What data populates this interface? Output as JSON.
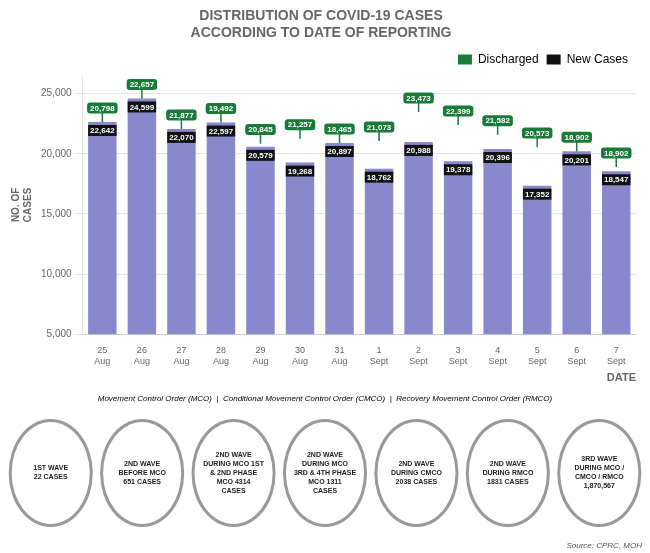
{
  "chart_data": {
    "type": "bar",
    "title": "DISTRIBUTION OF COVID-19 CASES\nACCORDING TO DATE OF REPORTING",
    "xlabel": "DATE",
    "ylabel": "NO. OF\nCASES",
    "categories": [
      "25\nAug",
      "26\nAug",
      "27\nAug",
      "28\nAug",
      "29\nAug",
      "30\nAug",
      "31\nAug",
      "1\nSept",
      "2\nSept",
      "3\nSept",
      "4\nSept",
      "5\nSept",
      "6\nSept",
      "7\nSept"
    ],
    "color": "#8888cc",
    "series": [
      {
        "name": "Discharged",
        "type": "label",
        "color": "#1a7a3a",
        "values": [
          20798,
          22657,
          21877,
          19492,
          20845,
          21257,
          18465,
          21073,
          23473,
          22399,
          21582,
          20573,
          18902,
          18902
        ],
        "value_labels": [
          "20,798",
          "22,657",
          "21,877",
          "19,492",
          "20,845",
          "21,257",
          "18,465",
          "21,073",
          "23,473",
          "22,399",
          "21,582",
          "20,573",
          "18,902",
          "18,902"
        ]
      },
      {
        "name": "New Cases",
        "type": "bar",
        "color": "#111111",
        "values": [
          22642,
          24599,
          22070,
          22597,
          20579,
          19268,
          20897,
          18762,
          20988,
          19378,
          20396,
          17352,
          20201,
          18547
        ],
        "value_labels": [
          "22,642",
          "24,599",
          "22,070",
          "22,597",
          "20,579",
          "19,268",
          "20,897",
          "18,762",
          "20,988",
          "19,378",
          "20,396",
          "17,352",
          "20,201",
          "18,547"
        ]
      }
    ],
    "ylim": [
      5000,
      26500
    ],
    "yticks": [
      {
        "value": 5000,
        "label": "5,000"
      },
      {
        "value": 10000,
        "label": "10,000"
      },
      {
        "value": 15000,
        "label": "15,000"
      },
      {
        "value": 20000,
        "label": "20,000"
      },
      {
        "value": 25000,
        "label": "25,000"
      }
    ],
    "grid": true,
    "legend": "upper right",
    "data_labels": true,
    "annotations": [
      "Movement Control Order (MCO)  |  Conditional Movement Control Order (CMCO)  |  Recovery Movement Control Order (RMCO)",
      "1ST WAVE\n22 CASES",
      "2ND WAVE\nBEFORE MCO\n651 CASES",
      "2ND WAVE\nDURING MCO 1ST\n& 2ND PHASE\nMCO 4314\nCASES",
      "2ND WAVE\nDURING MCO\n3RD & 4TH PHASE\nMCO 1311\nCASES",
      "2ND WAVE\nDURING CMCO\n2038 CASES",
      "2ND WAVE\nDURING RMCO\n1831 CASES",
      "3RD WAVE\nDURING MCO /\nCMCO / RMCO\n1,870,567",
      "Source: CPRC, MOH"
    ]
  }
}
